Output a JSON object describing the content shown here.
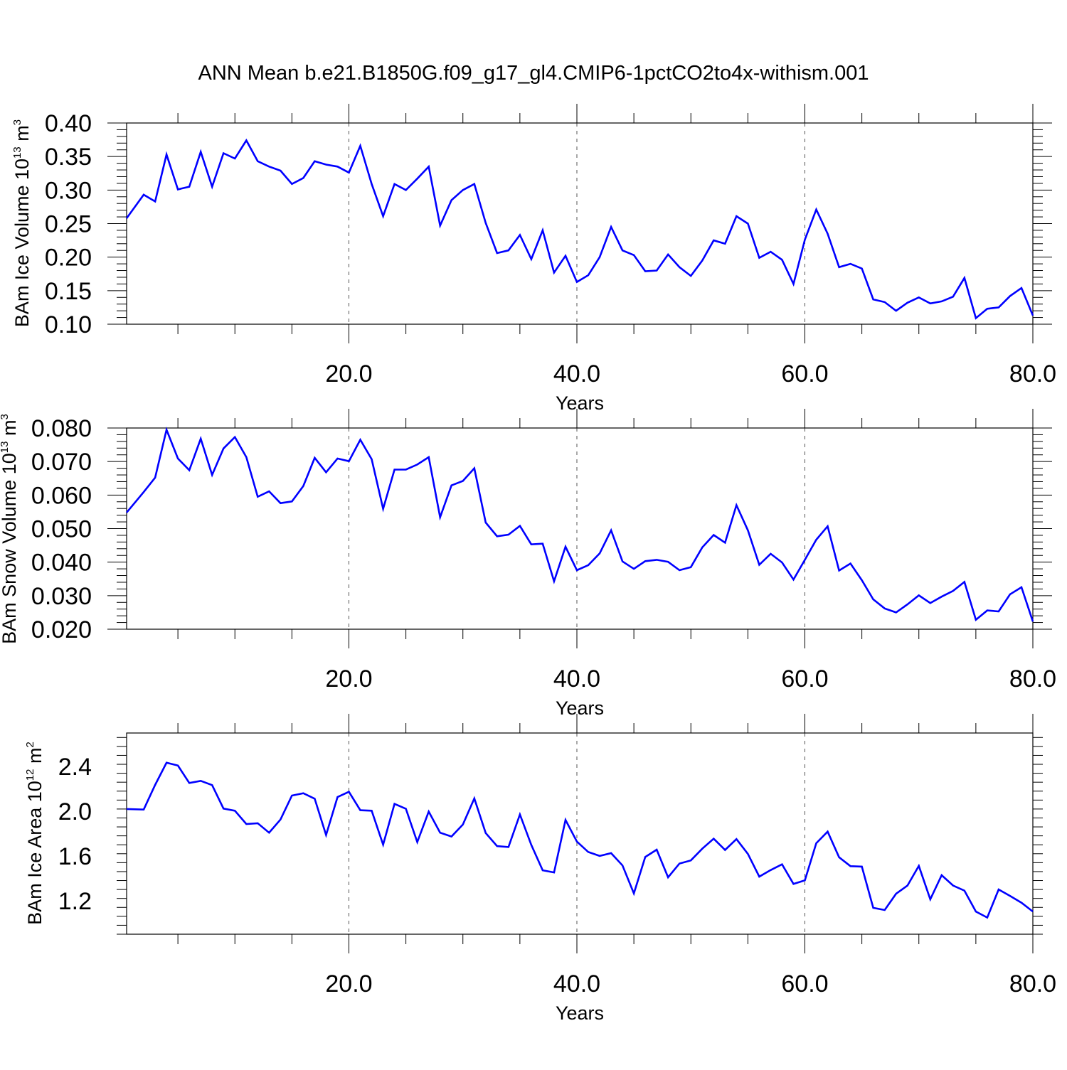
{
  "title": "ANN Mean b.e21.B1850G.f09_g17_gl4.CMIP6-1pctCO2to4x-withism.001",
  "chart_data": [
    {
      "type": "line",
      "ylabel": {
        "main": "BAm Ice Volume 10",
        "exp": "13",
        "unit": " m",
        "unit_exp": "3"
      },
      "xlabel": "Years",
      "xlim": [
        0.5,
        80
      ],
      "ylim": [
        0.1,
        0.4
      ],
      "xticks": [
        "20.0",
        "40.0",
        "60.0",
        "80.0"
      ],
      "xtick_values": [
        20,
        40,
        60,
        80
      ],
      "yticks": [
        "0.10",
        "0.15",
        "0.20",
        "0.25",
        "0.30",
        "0.35",
        "0.40"
      ],
      "ytick_values": [
        0.1,
        0.15,
        0.2,
        0.25,
        0.3,
        0.35,
        0.4
      ],
      "grid": "dashed vertical at x ticks",
      "color": "#0000ff",
      "x_start": 0.5,
      "values": [
        0.258,
        0.293,
        0.283,
        0.353,
        0.301,
        0.305,
        0.357,
        0.305,
        0.355,
        0.347,
        0.374,
        0.343,
        0.335,
        0.329,
        0.309,
        0.318,
        0.343,
        0.338,
        0.335,
        0.326,
        0.366,
        0.309,
        0.261,
        0.309,
        0.3,
        0.317,
        0.335,
        0.247,
        0.285,
        0.3,
        0.309,
        0.251,
        0.206,
        0.21,
        0.233,
        0.197,
        0.24,
        0.177,
        0.202,
        0.163,
        0.173,
        0.2,
        0.245,
        0.21,
        0.203,
        0.179,
        0.18,
        0.204,
        0.185,
        0.172,
        0.195,
        0.225,
        0.22,
        0.261,
        0.25,
        0.199,
        0.208,
        0.196,
        0.16,
        0.226,
        0.271,
        0.235,
        0.185,
        0.19,
        0.183,
        0.137,
        0.133,
        0.12,
        0.132,
        0.14,
        0.131,
        0.134,
        0.141,
        0.169,
        0.109,
        0.123,
        0.125,
        0.142,
        0.154,
        0.113
      ]
    },
    {
      "type": "line",
      "ylabel": {
        "main": "BAm Snow Volume 10",
        "exp": "13",
        "unit": " m",
        "unit_exp": "3"
      },
      "xlabel": "Years",
      "xlim": [
        0.5,
        80
      ],
      "ylim": [
        0.02,
        0.08
      ],
      "xticks": [
        "20.0",
        "40.0",
        "60.0",
        "80.0"
      ],
      "xtick_values": [
        20,
        40,
        60,
        80
      ],
      "yticks": [
        "0.020",
        "0.030",
        "0.040",
        "0.050",
        "0.060",
        "0.070",
        "0.080"
      ],
      "ytick_values": [
        0.02,
        0.03,
        0.04,
        0.05,
        0.06,
        0.07,
        0.08
      ],
      "grid": "dashed vertical at x ticks",
      "color": "#0000ff",
      "x_start": 0.5,
      "values": [
        0.0548,
        0.0609,
        0.0652,
        0.0795,
        0.0709,
        0.0674,
        0.0768,
        0.066,
        0.0739,
        0.0773,
        0.0713,
        0.0595,
        0.0611,
        0.0576,
        0.0581,
        0.0627,
        0.0711,
        0.0668,
        0.0709,
        0.0701,
        0.0765,
        0.0707,
        0.0559,
        0.0676,
        0.0676,
        0.0691,
        0.0713,
        0.0534,
        0.0629,
        0.0642,
        0.068,
        0.0518,
        0.0477,
        0.0482,
        0.0508,
        0.0453,
        0.0455,
        0.0343,
        0.0446,
        0.0376,
        0.0391,
        0.0426,
        0.0495,
        0.0402,
        0.038,
        0.0403,
        0.0407,
        0.0401,
        0.0376,
        0.0385,
        0.0444,
        0.0481,
        0.0458,
        0.057,
        0.0495,
        0.0392,
        0.0425,
        0.0399,
        0.0348,
        0.0407,
        0.0467,
        0.0507,
        0.0375,
        0.0396,
        0.0346,
        0.0289,
        0.0262,
        0.025,
        0.0274,
        0.0301,
        0.0278,
        0.0297,
        0.0314,
        0.0341,
        0.0228,
        0.0256,
        0.0253,
        0.0304,
        0.0325,
        0.0223
      ]
    },
    {
      "type": "line",
      "ylabel": {
        "main": "BAm Ice Area 10",
        "exp": "12",
        "unit": " m",
        "unit_exp": "2"
      },
      "xlabel": "Years",
      "xlim": [
        0.5,
        80
      ],
      "ylim": [
        0.9,
        2.7
      ],
      "xticks": [
        "20.0",
        "40.0",
        "60.0",
        "80.0"
      ],
      "xtick_values": [
        20,
        40,
        60,
        80
      ],
      "yticks": [
        "1.2",
        "1.6",
        "2.0",
        "2.4"
      ],
      "ytick_values": [
        1.2,
        1.6,
        2.0,
        2.4
      ],
      "grid": "dashed vertical at x ticks",
      "color": "#0000ff",
      "x_start": 0.5,
      "values": [
        2.02,
        2.015,
        2.236,
        2.434,
        2.409,
        2.253,
        2.272,
        2.234,
        2.024,
        2.005,
        1.886,
        1.893,
        1.808,
        1.926,
        2.14,
        2.161,
        2.112,
        1.787,
        2.127,
        2.174,
        2.009,
        2.005,
        1.701,
        2.066,
        2.022,
        1.724,
        1.997,
        1.808,
        1.774,
        1.881,
        2.115,
        1.805,
        1.688,
        1.68,
        1.971,
        1.699,
        1.472,
        1.453,
        1.922,
        1.729,
        1.635,
        1.6,
        1.625,
        1.515,
        1.265,
        1.591,
        1.656,
        1.409,
        1.532,
        1.56,
        1.665,
        1.754,
        1.654,
        1.751,
        1.618,
        1.415,
        1.474,
        1.525,
        1.35,
        1.382,
        1.714,
        1.818,
        1.588,
        1.509,
        1.505,
        1.136,
        1.116,
        1.262,
        1.335,
        1.511,
        1.212,
        1.428,
        1.336,
        1.29,
        1.103,
        1.049,
        1.3,
        1.243,
        1.182,
        1.103
      ]
    }
  ]
}
